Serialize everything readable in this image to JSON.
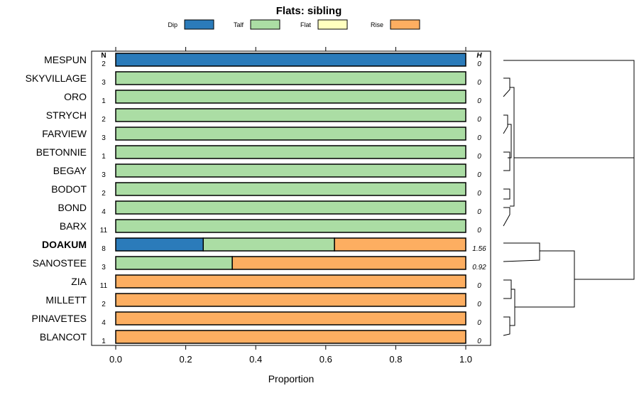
{
  "chart_data": {
    "type": "bar",
    "orientation": "horizontal",
    "stacked": true,
    "title": "Flats: sibling",
    "xlabel": "Proportion",
    "xlim": [
      0,
      1
    ],
    "xticks": [
      "0.0",
      "0.2",
      "0.4",
      "0.6",
      "0.8",
      "1.0"
    ],
    "xtick_values": [
      0,
      0.2,
      0.4,
      0.6,
      0.8,
      1.0
    ],
    "n_header": "N",
    "h_header": "H",
    "highlighted_category": "DOAKUM",
    "legend": [
      {
        "name": "Dip",
        "color": "#2b7bba"
      },
      {
        "name": "Talf",
        "color": "#abdda4"
      },
      {
        "name": "Flat",
        "color": "#ffffbf"
      },
      {
        "name": "Rise",
        "color": "#fdae61"
      }
    ],
    "rows": [
      {
        "name": "MESPUN",
        "n": "2",
        "h": "0",
        "values": [
          1,
          0,
          0,
          0
        ]
      },
      {
        "name": "SKYVILLAGE",
        "n": "3",
        "h": "0",
        "values": [
          0,
          1,
          0,
          0
        ]
      },
      {
        "name": "ORO",
        "n": "1",
        "h": "0",
        "values": [
          0,
          1,
          0,
          0
        ]
      },
      {
        "name": "STRYCH",
        "n": "2",
        "h": "0",
        "values": [
          0,
          1,
          0,
          0
        ]
      },
      {
        "name": "FARVIEW",
        "n": "3",
        "h": "0",
        "values": [
          0,
          1,
          0,
          0
        ]
      },
      {
        "name": "BETONNIE",
        "n": "1",
        "h": "0",
        "values": [
          0,
          1,
          0,
          0
        ]
      },
      {
        "name": "BEGAY",
        "n": "3",
        "h": "0",
        "values": [
          0,
          1,
          0,
          0
        ]
      },
      {
        "name": "BODOT",
        "n": "2",
        "h": "0",
        "values": [
          0,
          1,
          0,
          0
        ]
      },
      {
        "name": "BOND",
        "n": "4",
        "h": "0",
        "values": [
          0,
          1,
          0,
          0
        ]
      },
      {
        "name": "BARX",
        "n": "11",
        "h": "0",
        "values": [
          0,
          1,
          0,
          0
        ]
      },
      {
        "name": "DOAKUM",
        "n": "8",
        "h": "1.56",
        "values": [
          0.25,
          0.375,
          0,
          0.375
        ]
      },
      {
        "name": "SANOSTEE",
        "n": "3",
        "h": "0.92",
        "values": [
          0,
          0.333,
          0,
          0.667
        ]
      },
      {
        "name": "ZIA",
        "n": "11",
        "h": "0",
        "values": [
          0,
          0,
          0,
          1
        ]
      },
      {
        "name": "MILLETT",
        "n": "2",
        "h": "0",
        "values": [
          0,
          0,
          0,
          1
        ]
      },
      {
        "name": "PINAVETES",
        "n": "4",
        "h": "0",
        "values": [
          0,
          0,
          0,
          1
        ]
      },
      {
        "name": "BLANCOT",
        "n": "1",
        "h": "0",
        "values": [
          0,
          0,
          0,
          1
        ]
      }
    ]
  }
}
